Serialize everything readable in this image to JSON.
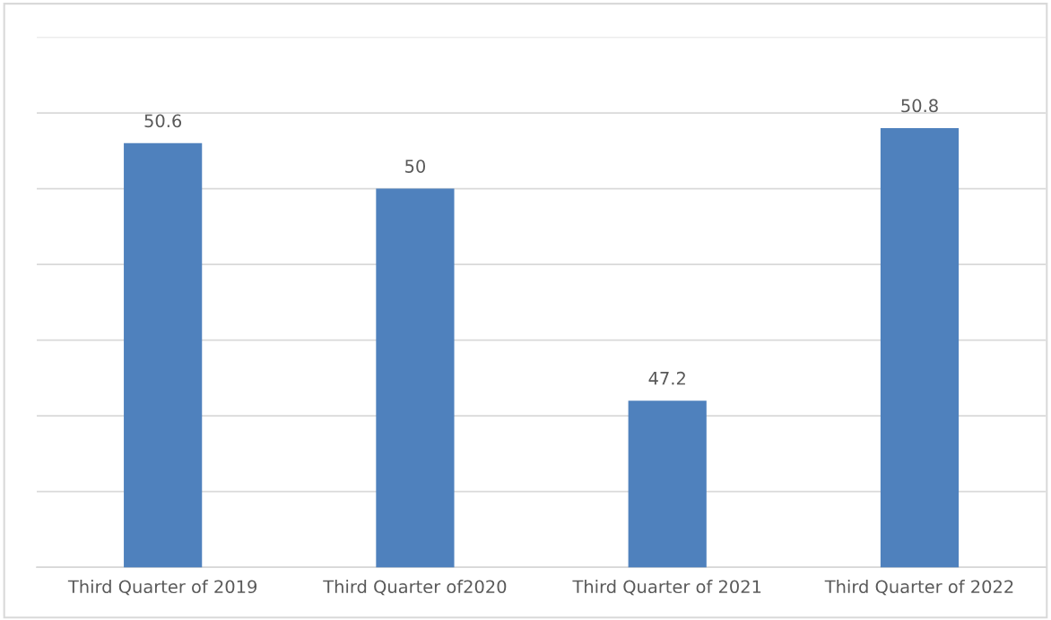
{
  "chart_data": {
    "type": "bar",
    "categories": [
      "Third Quarter of 2019",
      "Third Quarter of2020",
      "Third Quarter of 2021",
      "Third Quarter of 2022"
    ],
    "values": [
      50.6,
      50,
      47.2,
      50.8
    ],
    "color": "#4f81bd",
    "ylim": [
      45,
      52
    ],
    "yticks": [
      {
        "value": 45,
        "label": null
      },
      {
        "value": 46,
        "label": null
      },
      {
        "value": 47,
        "label": null
      },
      {
        "value": 48,
        "label": null
      },
      {
        "value": 49,
        "label": null
      },
      {
        "value": 50,
        "label": null
      },
      {
        "value": 51,
        "label": null
      },
      {
        "value": 52,
        "label": null
      }
    ],
    "grid": "y",
    "tick_labels": "x",
    "data_labels": true
  }
}
